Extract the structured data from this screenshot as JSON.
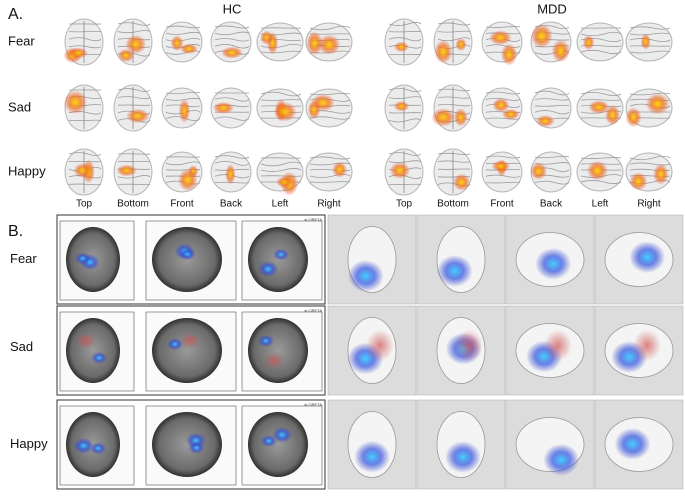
{
  "panel_a": {
    "label": "A.",
    "groups": [
      "HC",
      "MDD"
    ],
    "rows": [
      "Fear",
      "Sad",
      "Happy"
    ],
    "views": [
      "Top",
      "Bottom",
      "Front",
      "Back",
      "Left",
      "Right"
    ]
  },
  "panel_b": {
    "label": "B.",
    "rows": [
      "Fear",
      "Sad",
      "Happy"
    ],
    "software": "sLORETA"
  }
}
